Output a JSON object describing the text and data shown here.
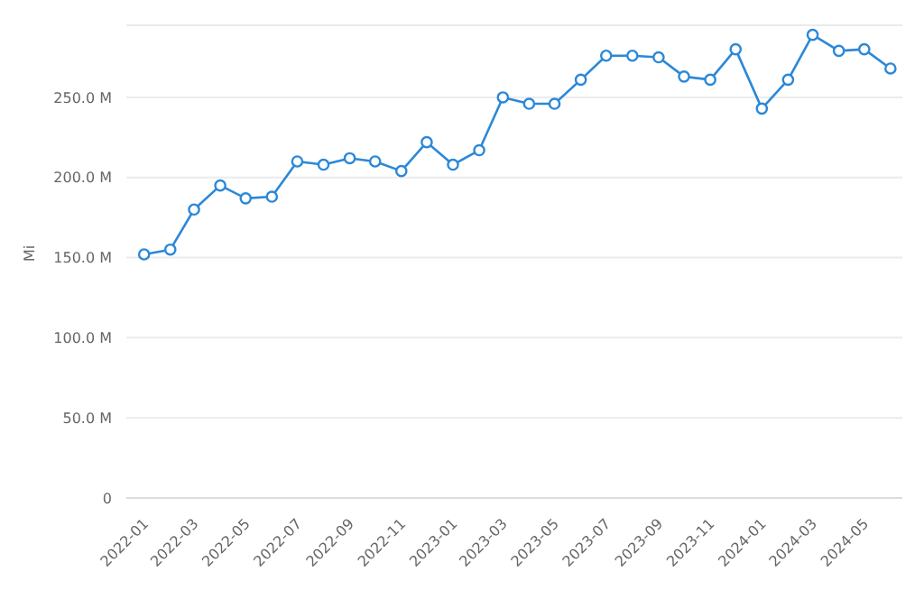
{
  "chart_data": {
    "type": "line",
    "ylabel": "Mi",
    "x": [
      "2022-01",
      "2022-02",
      "2022-03",
      "2022-04",
      "2022-05",
      "2022-06",
      "2022-07",
      "2022-08",
      "2022-09",
      "2022-10",
      "2022-11",
      "2022-12",
      "2023-01",
      "2023-02",
      "2023-03",
      "2023-04",
      "2023-05",
      "2023-06",
      "2023-07",
      "2023-08",
      "2023-09",
      "2023-10",
      "2023-11",
      "2023-12",
      "2024-01",
      "2024-02",
      "2024-03",
      "2024-04",
      "2024-05",
      "2024-06"
    ],
    "series": [
      {
        "color": "#2b88d8",
        "values": [
          152,
          155,
          180,
          195,
          187,
          188,
          210,
          208,
          212,
          210,
          204,
          222,
          208,
          217,
          250,
          246,
          246,
          261,
          276,
          276,
          275,
          263,
          261,
          280,
          243,
          261,
          289,
          279,
          280,
          268
        ]
      }
    ],
    "xlim": [
      "2021-12-11",
      "2024-06-15"
    ],
    "xticks": [
      "2022-01",
      "2022-03",
      "2022-05",
      "2022-07",
      "2022-09",
      "2022-11",
      "2023-01",
      "2023-03",
      "2023-05",
      "2023-07",
      "2023-09",
      "2023-11",
      "2024-01",
      "2024-03",
      "2024-05"
    ],
    "ylim": [
      0,
      295
    ],
    "yticks": [
      {
        "value": 0,
        "label": "0"
      },
      {
        "value": 50,
        "label": "50.0 M"
      },
      {
        "value": 100,
        "label": "100.0 M"
      },
      {
        "value": 150,
        "label": "150.0 M"
      },
      {
        "value": 200,
        "label": "200.0 M"
      },
      {
        "value": 250,
        "label": "250.0 M"
      }
    ],
    "grid": "y",
    "marker": "circle",
    "line_style": "solid",
    "legend": false
  }
}
